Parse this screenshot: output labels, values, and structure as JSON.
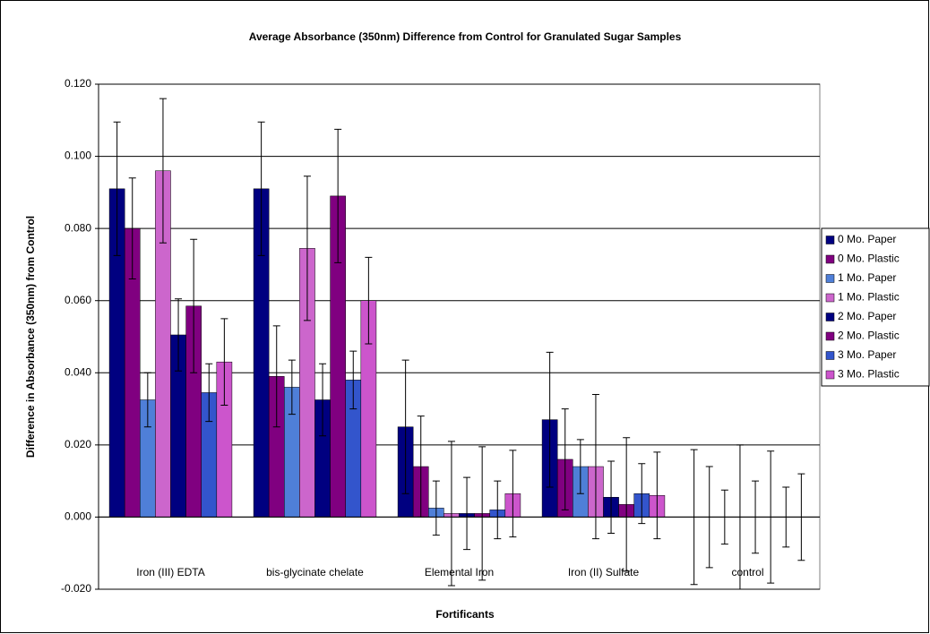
{
  "chart_data": {
    "type": "bar",
    "title": "Average Absorbance (350nm)  Difference from Control for Granulated Sugar Samples",
    "x_label": "Fortificants",
    "y_label": "Difference in Absorbance (350nm) from Control",
    "categories": [
      "Iron (III) EDTA",
      "bis-glycinate chelate",
      "Elemental Iron",
      "Iron (II) Sulfate",
      "control"
    ],
    "series": [
      {
        "name": "0 Mo. Paper",
        "color": "#000080",
        "values": [
          0.091,
          0.091,
          0.025,
          0.027,
          0
        ],
        "errors": [
          0.0185,
          0.0185,
          0.0185,
          0.0187,
          0.0187
        ]
      },
      {
        "name": "0 Mo. Plastic",
        "color": "#800080",
        "values": [
          0.08,
          0.039,
          0.014,
          0.016,
          0
        ],
        "errors": [
          0.014,
          0.014,
          0.014,
          0.014,
          0.014
        ]
      },
      {
        "name": "1 Mo. Paper",
        "color": "#4f7fd8",
        "values": [
          0.0325,
          0.036,
          0.0025,
          0.014,
          0
        ],
        "errors": [
          0.0075,
          0.0075,
          0.0075,
          0.0075,
          0.0075
        ]
      },
      {
        "name": "1 Mo. Plastic",
        "color": "#cc66cc",
        "values": [
          0.096,
          0.0745,
          0.001,
          0.014,
          0
        ],
        "errors": [
          0.02,
          0.02,
          0.02,
          0.02,
          0.02
        ]
      },
      {
        "name": "2 Mo. Paper",
        "color": "#000080",
        "values": [
          0.0505,
          0.0325,
          0.001,
          0.0055,
          0
        ],
        "errors": [
          0.01,
          0.01,
          0.01,
          0.01,
          0.01
        ]
      },
      {
        "name": "2 Mo. Plastic",
        "color": "#800080",
        "values": [
          0.0585,
          0.089,
          0.001,
          0.0035,
          0
        ],
        "errors": [
          0.0185,
          0.0185,
          0.0185,
          0.0185,
          0.0183
        ]
      },
      {
        "name": "3 Mo. Paper",
        "color": "#3355cc",
        "values": [
          0.0345,
          0.038,
          0.002,
          0.0065,
          0
        ],
        "errors": [
          0.008,
          0.008,
          0.008,
          0.0083,
          0.0083
        ]
      },
      {
        "name": "3 Mo. Plastic",
        "color": "#cc55cc",
        "values": [
          0.043,
          0.06,
          0.0065,
          0.006,
          0
        ],
        "errors": [
          0.012,
          0.012,
          0.012,
          0.012,
          0.012
        ]
      }
    ],
    "ylim": [
      -0.02,
      0.12
    ],
    "yticks": [
      {
        "value": -0.02,
        "label": "-0.020"
      },
      {
        "value": 0,
        "label": "0.000"
      },
      {
        "value": 0.02,
        "label": "0.020"
      },
      {
        "value": 0.04,
        "label": "0.040"
      },
      {
        "value": 0.06,
        "label": "0.060"
      },
      {
        "value": 0.08,
        "label": "0.080"
      },
      {
        "value": 0.1,
        "label": "0.100"
      },
      {
        "value": 0.12,
        "label": "0.120"
      }
    ],
    "grid": true,
    "legend": "right"
  }
}
